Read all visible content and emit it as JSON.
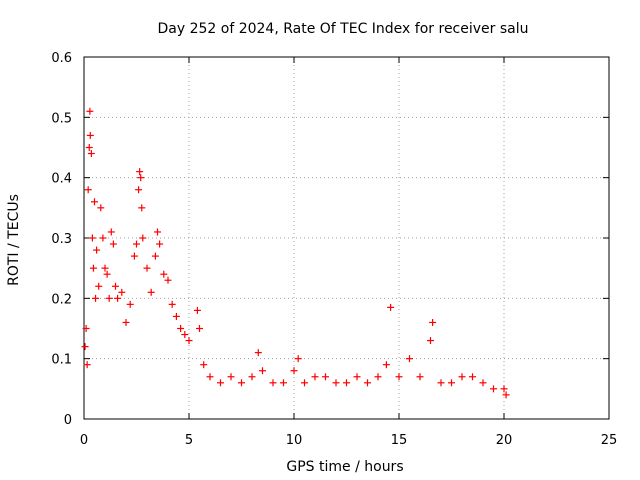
{
  "chart_data": {
    "type": "scatter",
    "title": "Day 252 of 2024, Rate Of TEC Index for receiver salu",
    "xlabel": "GPS time / hours",
    "ylabel": "ROTI / TECUs",
    "xlim": [
      0,
      25
    ],
    "ylim": [
      0,
      0.6
    ],
    "xticks": [
      0,
      5,
      10,
      15,
      20,
      25
    ],
    "yticks": [
      0,
      0.1,
      0.2,
      0.3,
      0.4,
      0.5,
      0.6
    ],
    "xtick_labels": [
      "0",
      "5",
      "10",
      "15",
      "20",
      "25"
    ],
    "ytick_labels": [
      "0",
      "0.1",
      "0.2",
      "0.3",
      "0.4",
      "0.5",
      "0.6"
    ],
    "grid": true,
    "marker": "+",
    "marker_color": "#ff0000",
    "series": [
      {
        "name": "salu",
        "points": [
          [
            0.05,
            0.12
          ],
          [
            0.1,
            0.15
          ],
          [
            0.15,
            0.09
          ],
          [
            0.2,
            0.38
          ],
          [
            0.25,
            0.45
          ],
          [
            0.28,
            0.51
          ],
          [
            0.3,
            0.47
          ],
          [
            0.35,
            0.44
          ],
          [
            0.4,
            0.3
          ],
          [
            0.45,
            0.25
          ],
          [
            0.5,
            0.36
          ],
          [
            0.55,
            0.2
          ],
          [
            0.6,
            0.28
          ],
          [
            0.7,
            0.22
          ],
          [
            0.8,
            0.35
          ],
          [
            0.9,
            0.3
          ],
          [
            1.0,
            0.25
          ],
          [
            1.1,
            0.24
          ],
          [
            1.2,
            0.2
          ],
          [
            1.3,
            0.31
          ],
          [
            1.4,
            0.29
          ],
          [
            1.5,
            0.22
          ],
          [
            1.6,
            0.2
          ],
          [
            1.8,
            0.21
          ],
          [
            2.0,
            0.16
          ],
          [
            2.2,
            0.19
          ],
          [
            2.4,
            0.27
          ],
          [
            2.5,
            0.29
          ],
          [
            2.6,
            0.38
          ],
          [
            2.65,
            0.41
          ],
          [
            2.7,
            0.4
          ],
          [
            2.75,
            0.35
          ],
          [
            2.8,
            0.3
          ],
          [
            3.0,
            0.25
          ],
          [
            3.2,
            0.21
          ],
          [
            3.4,
            0.27
          ],
          [
            3.5,
            0.31
          ],
          [
            3.6,
            0.29
          ],
          [
            3.8,
            0.24
          ],
          [
            4.0,
            0.23
          ],
          [
            4.2,
            0.19
          ],
          [
            4.4,
            0.17
          ],
          [
            4.6,
            0.15
          ],
          [
            4.8,
            0.14
          ],
          [
            5.0,
            0.13
          ],
          [
            5.4,
            0.18
          ],
          [
            5.5,
            0.15
          ],
          [
            5.7,
            0.09
          ],
          [
            6.0,
            0.07
          ],
          [
            6.5,
            0.06
          ],
          [
            7.0,
            0.07
          ],
          [
            7.5,
            0.06
          ],
          [
            8.0,
            0.07
          ],
          [
            8.3,
            0.11
          ],
          [
            8.5,
            0.08
          ],
          [
            9.0,
            0.06
          ],
          [
            9.5,
            0.06
          ],
          [
            10.0,
            0.08
          ],
          [
            10.2,
            0.1
          ],
          [
            10.5,
            0.06
          ],
          [
            11.0,
            0.07
          ],
          [
            11.5,
            0.07
          ],
          [
            12.0,
            0.06
          ],
          [
            12.5,
            0.06
          ],
          [
            13.0,
            0.07
          ],
          [
            13.5,
            0.06
          ],
          [
            14.0,
            0.07
          ],
          [
            14.4,
            0.09
          ],
          [
            14.6,
            0.185
          ],
          [
            15.0,
            0.07
          ],
          [
            15.5,
            0.1
          ],
          [
            16.0,
            0.07
          ],
          [
            16.5,
            0.13
          ],
          [
            16.6,
            0.16
          ],
          [
            17.0,
            0.06
          ],
          [
            17.5,
            0.06
          ],
          [
            18.0,
            0.07
          ],
          [
            18.5,
            0.07
          ],
          [
            19.0,
            0.06
          ],
          [
            19.5,
            0.05
          ],
          [
            20.0,
            0.05
          ],
          [
            20.1,
            0.04
          ]
        ]
      }
    ]
  }
}
